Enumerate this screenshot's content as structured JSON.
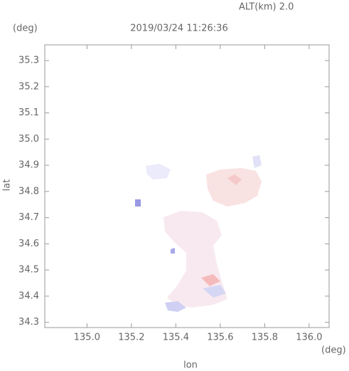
{
  "chart_data": {
    "type": "scatter",
    "title": "2019/03/24 11:26:36",
    "altitude_label": "ALT(km) 2.0",
    "y_unit": "(deg)",
    "x_unit": "(deg)",
    "xlabel": "lon",
    "ylabel": "lat",
    "xlim": [
      134.81,
      136.09
    ],
    "ylim": [
      34.28,
      35.36
    ],
    "xticks": [
      {
        "value": 135,
        "label": "135.0"
      },
      135.2,
      135.4,
      135.6,
      135.8,
      {
        "value": 136,
        "label": "136.0"
      }
    ],
    "yticks": [
      34.3,
      34.4,
      34.5,
      34.6,
      34.7,
      34.8,
      34.9,
      {
        "value": 35,
        "label": "35.0"
      },
      35.1,
      35.2,
      35.3
    ]
  }
}
